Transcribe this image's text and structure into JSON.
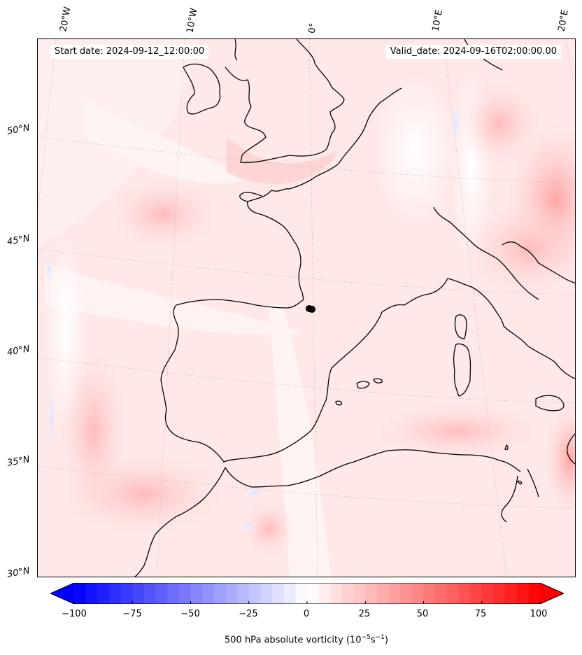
{
  "header": {
    "start_date": "Start date: 2024-09-12_12:00:00",
    "valid_date": "Valid_date: 2024-09-16T02:00:00.00"
  },
  "longitude_labels": [
    "20°W",
    "10°W",
    "0°",
    "10°E",
    "20°E"
  ],
  "latitude_labels": [
    "50°N",
    "45°N",
    "40°N",
    "35°N",
    "30°N"
  ],
  "colorbar": {
    "ticks": [
      "−100",
      "−75",
      "−50",
      "−25",
      "0",
      "25",
      "50",
      "75",
      "100"
    ],
    "label": "500 hPa absolute vorticity (10",
    "label_exp1": "−5",
    "label_mid": "s",
    "label_exp2": "−1",
    "label_end": ")",
    "range": [
      -100,
      100
    ],
    "colors": {
      "negative": "#0000ff",
      "zero": "#ffffff",
      "positive": "#ff0000"
    }
  },
  "map": {
    "field": "500 hPa absolute vorticity",
    "projection": "conic",
    "coastline_color": "#000000",
    "gridline_style": "dotted"
  }
}
